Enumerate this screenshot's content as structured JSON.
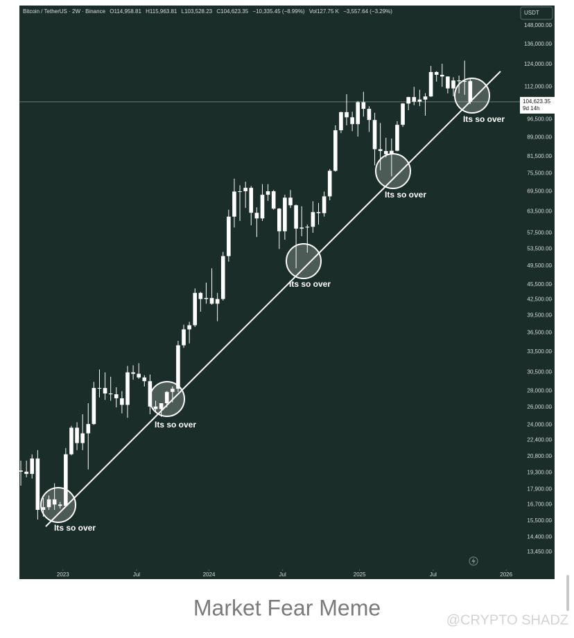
{
  "chart_data": {
    "type": "candlestick",
    "header": {
      "symbol": "Bitcoin / TetherUS · 2W · Binance",
      "open": "O114,958.81",
      "high": "H115,963.81",
      "low": "L103,528.23",
      "close": "C104,623.35",
      "change": "−10,335.45 (−8.99%)",
      "volume": "Vol127.75 K",
      "volume_change": "−3,557.64 (−3.29%)"
    },
    "currency": "USDT",
    "log_scale": true,
    "background": "#1b2d28",
    "candle_color": "#ffffff",
    "open": [
      19500,
      19400,
      19200,
      20600,
      16300,
      16500,
      17100,
      16700,
      16600,
      21000,
      23700,
      22100,
      23100,
      24100,
      28400,
      28400,
      27700,
      27600,
      27100,
      26300,
      30500,
      30300,
      29800,
      29300,
      26100,
      25800,
      26500,
      27900,
      28300,
      34500,
      37100,
      37800,
      43800,
      42600,
      42800,
      41700,
      42600,
      51800,
      62000,
      69500,
      69600,
      70700,
      63100,
      61500,
      68500,
      69600,
      64300,
      58000,
      67600,
      65300,
      58700,
      59000,
      59200,
      63300,
      63000,
      68000,
      76400,
      91900,
      99800,
      97500,
      94500,
      104400,
      101300,
      96300,
      84300,
      83600,
      82400,
      83700,
      94200,
      103800,
      106900,
      104700,
      105700,
      107200,
      119800,
      118300,
      117400,
      111200,
      115300,
      114900,
      114958.81
    ],
    "high": [
      20400,
      20400,
      21000,
      21400,
      17200,
      17400,
      18400,
      16900,
      21600,
      23900,
      24300,
      25200,
      26500,
      29200,
      30900,
      30500,
      29900,
      28500,
      28000,
      31400,
      31500,
      31800,
      30100,
      30200,
      26800,
      26500,
      28000,
      28600,
      35200,
      37900,
      38400,
      44700,
      44000,
      45900,
      49000,
      43800,
      52800,
      64000,
      73700,
      71500,
      72700,
      71300,
      64700,
      71900,
      71900,
      70000,
      64500,
      68500,
      70000,
      65500,
      65000,
      59800,
      66500,
      66000,
      69500,
      77000,
      94000,
      100000,
      108300,
      100000,
      105000,
      109500,
      102500,
      99500,
      95000,
      88800,
      88500,
      95800,
      104000,
      107000,
      112000,
      110500,
      108800,
      123200,
      120300,
      124400,
      117500,
      117000,
      117900,
      126200,
      115963.81
    ],
    "low": [
      18200,
      18900,
      18800,
      15600,
      15800,
      16300,
      16300,
      16400,
      16600,
      20900,
      21400,
      21400,
      19600,
      24000,
      27200,
      26900,
      26800,
      26000,
      25300,
      24800,
      29500,
      29600,
      28600,
      25200,
      25400,
      24900,
      26000,
      26600,
      27900,
      34100,
      34800,
      37500,
      40200,
      41700,
      41500,
      38500,
      42300,
      50500,
      59000,
      60800,
      64500,
      59600,
      56500,
      60800,
      66600,
      64000,
      53500,
      55800,
      64500,
      49000,
      56700,
      52600,
      57600,
      59800,
      62000,
      66800,
      76100,
      90700,
      94000,
      91500,
      89300,
      97800,
      91200,
      78300,
      76600,
      81200,
      74500,
      83500,
      93300,
      100700,
      103000,
      102600,
      98200,
      107000,
      114700,
      112000,
      108700,
      107300,
      108700,
      108000,
      103528.23
    ],
    "close": [
      19400,
      19200,
      20600,
      16300,
      16500,
      17100,
      16700,
      16600,
      21000,
      23700,
      22100,
      23100,
      24100,
      28400,
      28400,
      27700,
      27600,
      27100,
      26300,
      30500,
      30300,
      29800,
      29300,
      26100,
      25800,
      26500,
      27900,
      28300,
      34500,
      37100,
      37800,
      43800,
      42600,
      42800,
      41700,
      42600,
      51800,
      62000,
      69500,
      69600,
      70700,
      63100,
      61500,
      68500,
      69600,
      64300,
      58000,
      67600,
      65300,
      58700,
      59000,
      59200,
      63300,
      63000,
      68000,
      76400,
      91900,
      99800,
      97500,
      94500,
      104400,
      101300,
      96300,
      84300,
      83600,
      82400,
      83700,
      94200,
      103800,
      106900,
      104700,
      105700,
      107200,
      119800,
      118300,
      117400,
      111200,
      115300,
      114900,
      114958.81,
      104623.35
    ],
    "xlim": [
      -0.25,
      88.6
    ],
    "xticks": [
      {
        "value": 7.5,
        "label": "2023"
      },
      {
        "value": 20.6,
        "label": "Jul"
      },
      {
        "value": 33.5,
        "label": "2024"
      },
      {
        "value": 46.6,
        "label": "Jul"
      },
      {
        "value": 60.3,
        "label": "2025"
      },
      {
        "value": 73.4,
        "label": "Jul"
      },
      {
        "value": 86.4,
        "label": "2026"
      }
    ],
    "ylim": [
      11890,
      162200
    ],
    "yticks": [
      {
        "value": 148000,
        "label": "148,000.00"
      },
      {
        "value": 136000,
        "label": "136,000.00"
      },
      {
        "value": 124000,
        "label": "124,000.00"
      },
      {
        "value": 112000,
        "label": "112,000.00"
      },
      {
        "value": 96500,
        "label": "96,500.00"
      },
      {
        "value": 89000,
        "label": "89,000.00"
      },
      {
        "value": 81500,
        "label": "81,500.00"
      },
      {
        "value": 75500,
        "label": "75,500.00"
      },
      {
        "value": 69500,
        "label": "69,500.00"
      },
      {
        "value": 63500,
        "label": "63,500.00"
      },
      {
        "value": 57500,
        "label": "57,500.00"
      },
      {
        "value": 53500,
        "label": "53,500.00"
      },
      {
        "value": 49500,
        "label": "49,500.00"
      },
      {
        "value": 45500,
        "label": "45,500.00"
      },
      {
        "value": 42500,
        "label": "42,500.00"
      },
      {
        "value": 39500,
        "label": "39,500.00"
      },
      {
        "value": 36500,
        "label": "36,500.00"
      },
      {
        "value": 33500,
        "label": "33,500.00"
      },
      {
        "value": 30500,
        "label": "30,500.00"
      },
      {
        "value": 28000,
        "label": "28,000.00"
      },
      {
        "value": 26000,
        "label": "26,000.00"
      },
      {
        "value": 24000,
        "label": "24,000.00"
      },
      {
        "value": 22400,
        "label": "22,400.00"
      },
      {
        "value": 20800,
        "label": "20,800.00"
      },
      {
        "value": 19300,
        "label": "19,300.00"
      },
      {
        "value": 17900,
        "label": "17,900.00"
      },
      {
        "value": 16700,
        "label": "16,700.00"
      },
      {
        "value": 15500,
        "label": "15,500.00"
      },
      {
        "value": 14400,
        "label": "14,400.00"
      },
      {
        "value": 13450,
        "label": "13,450.00"
      }
    ],
    "last_price": {
      "value": 104623.35,
      "label": "104,623.35"
    },
    "countdown": "9d 14h",
    "annotations": [
      "Its so over",
      "Its so over",
      "Its so over",
      "Its so over",
      "Its so over"
    ]
  },
  "caption": "Market Fear Meme",
  "watermark": "@CRYPTO SHADZ"
}
